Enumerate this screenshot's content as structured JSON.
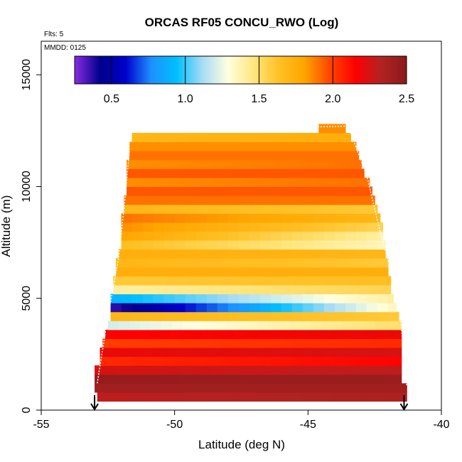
{
  "chart_data": {
    "type": "heatmap",
    "title": "ORCAS RF05 CONCU_RWO (Log)",
    "subtitle_flights": "Flts: 5",
    "subtitle_date": "MMDD: 0125",
    "xlabel": "Latitude (deg N)",
    "ylabel": "Altitude (m)",
    "xlim": [
      -55,
      -40
    ],
    "ylim": [
      0,
      16500
    ],
    "x_ticks": [
      -55,
      -50,
      -45,
      -40
    ],
    "x_tick_labels": [
      "-55",
      "-50",
      "-45",
      "-40"
    ],
    "y_ticks": [
      0,
      5000,
      10000,
      15000
    ],
    "y_tick_labels": [
      "0",
      "5000",
      "10000",
      "15000"
    ],
    "colorbar": {
      "min": 0.25,
      "max": 2.5,
      "ticks": [
        0.5,
        1.0,
        1.5,
        2.0,
        2.5
      ],
      "tick_labels": [
        "0.5",
        "1.0",
        "1.5",
        "2.0",
        "2.5"
      ],
      "colors": [
        "#8a2be2",
        "#00008b",
        "#0000cd",
        "#1e90ff",
        "#00bfff",
        "#a6dcf5",
        "#ffffe0",
        "#ffe680",
        "#ffc125",
        "#ffa500",
        "#ff4500",
        "#ff0000",
        "#b22222",
        "#8b1a1a"
      ]
    },
    "arrows_latitude": [
      -53,
      -41.4
    ],
    "flight_track_latitude": [
      -52.9,
      -52.5,
      -52.1,
      -51.9,
      -51.7,
      -51.7,
      -43.5,
      -42.8,
      -42.3,
      -41.6,
      -41.3
    ],
    "flight_track_altitude": [
      1200,
      4200,
      6800,
      9000,
      11500,
      12500,
      12700,
      10500,
      8000,
      5000,
      1100
    ],
    "profile": [
      {
        "alt": 600,
        "latmin": -52.9,
        "latmax": -41.3,
        "base": 2.3,
        "grad": 0.05
      },
      {
        "alt": 1000,
        "latmin": -53.0,
        "latmax": -41.3,
        "base": 2.4,
        "grad": 0.0
      },
      {
        "alt": 1400,
        "latmin": -53.0,
        "latmax": -41.5,
        "base": 2.45,
        "grad": -0.02
      },
      {
        "alt": 1800,
        "latmin": -53.0,
        "latmax": -41.5,
        "base": 2.25,
        "grad": 0.05
      },
      {
        "alt": 2200,
        "latmin": -52.8,
        "latmax": -41.5,
        "base": 2.05,
        "grad": 0.1
      },
      {
        "alt": 2600,
        "latmin": -52.8,
        "latmax": -41.5,
        "base": 2.2,
        "grad": 0.05
      },
      {
        "alt": 3000,
        "latmin": -52.7,
        "latmax": -41.5,
        "base": 2.0,
        "grad": 0.05
      },
      {
        "alt": 3400,
        "latmin": -52.6,
        "latmax": -41.5,
        "base": 2.15,
        "grad": 0.05
      },
      {
        "alt": 3800,
        "latmin": -52.5,
        "latmax": -41.5,
        "base": 1.2,
        "grad": 0.3
      },
      {
        "alt": 4200,
        "latmin": -52.4,
        "latmax": -41.6,
        "base": 1.7,
        "grad": -0.1
      },
      {
        "alt": 4600,
        "latmin": -52.4,
        "latmax": -41.7,
        "base": 0.35,
        "grad": 1.0
      },
      {
        "alt": 5000,
        "latmin": -52.4,
        "latmax": -41.8,
        "base": 0.9,
        "grad": 0.5
      },
      {
        "alt": 5400,
        "latmin": -52.3,
        "latmax": -41.9,
        "base": 1.4,
        "grad": 0.15
      },
      {
        "alt": 5800,
        "latmin": -52.3,
        "latmax": -41.9,
        "base": 1.6,
        "grad": 0.05
      },
      {
        "alt": 6200,
        "latmin": -52.2,
        "latmax": -42.0,
        "base": 1.75,
        "grad": 0.0
      },
      {
        "alt": 6600,
        "latmin": -52.2,
        "latmax": -42.0,
        "base": 1.7,
        "grad": -0.1
      },
      {
        "alt": 7000,
        "latmin": -52.1,
        "latmax": -42.1,
        "base": 1.75,
        "grad": -0.05
      },
      {
        "alt": 7400,
        "latmin": -52.0,
        "latmax": -42.1,
        "base": 1.65,
        "grad": -0.3
      },
      {
        "alt": 7800,
        "latmin": -52.0,
        "latmax": -42.2,
        "base": 1.8,
        "grad": -0.4
      },
      {
        "alt": 8200,
        "latmin": -52.0,
        "latmax": -42.2,
        "base": 1.85,
        "grad": -0.3
      },
      {
        "alt": 8600,
        "latmin": -52.0,
        "latmax": -42.3,
        "base": 1.9,
        "grad": -0.2
      },
      {
        "alt": 9000,
        "latmin": -51.9,
        "latmax": -42.4,
        "base": 1.7,
        "grad": -0.1
      },
      {
        "alt": 9400,
        "latmin": -51.9,
        "latmax": -42.5,
        "base": 1.9,
        "grad": 0.0
      },
      {
        "alt": 9800,
        "latmin": -51.8,
        "latmax": -42.6,
        "base": 1.95,
        "grad": 0.0
      },
      {
        "alt": 10200,
        "latmin": -51.8,
        "latmax": -42.7,
        "base": 1.85,
        "grad": 0.05
      },
      {
        "alt": 10600,
        "latmin": -51.8,
        "latmax": -42.9,
        "base": 1.95,
        "grad": 0.0
      },
      {
        "alt": 11000,
        "latmin": -51.8,
        "latmax": -43.0,
        "base": 1.85,
        "grad": 0.05
      },
      {
        "alt": 11400,
        "latmin": -51.7,
        "latmax": -43.1,
        "base": 1.9,
        "grad": 0.0
      },
      {
        "alt": 11800,
        "latmin": -51.7,
        "latmax": -43.2,
        "base": 1.85,
        "grad": 0.0
      },
      {
        "alt": 12200,
        "latmin": -51.6,
        "latmax": -43.4,
        "base": 1.7,
        "grad": 0.05
      },
      {
        "alt": 12600,
        "latmin": -44.6,
        "latmax": -43.6,
        "base": 1.85,
        "grad": 0.0
      }
    ]
  }
}
